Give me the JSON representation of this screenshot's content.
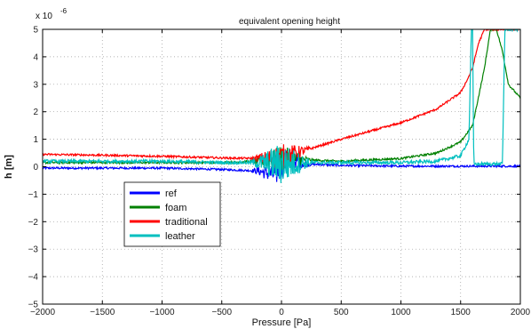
{
  "chart_data": {
    "type": "line",
    "title": "equivalent opening height",
    "xlabel": "Pressure [Pa]",
    "ylabel": "h [m]",
    "y_exponent": "x 10",
    "y_exponent_power": "-6",
    "xlim": [
      -2000,
      2000
    ],
    "ylim": [
      -5,
      5
    ],
    "x_ticks": [
      -2000,
      -1500,
      -1000,
      -500,
      0,
      500,
      1000,
      1500,
      2000
    ],
    "y_ticks": [
      -5,
      -4,
      -3,
      -2,
      -1,
      0,
      1,
      2,
      3,
      4,
      5
    ],
    "grid": true,
    "legend_position": "lower-left",
    "series": [
      {
        "name": "ref",
        "color": "#0000ff",
        "x": [
          -2000,
          -1500,
          -1000,
          -500,
          -200,
          -50,
          0,
          50,
          200,
          500,
          1000,
          1500,
          1600,
          1800,
          2000
        ],
        "y": [
          -0.05,
          -0.05,
          -0.05,
          -0.1,
          -0.15,
          -0.3,
          0,
          0.3,
          0.1,
          0.05,
          0.02,
          0.02,
          0.02,
          0.02,
          0.02
        ]
      },
      {
        "name": "foam",
        "color": "#008000",
        "x": [
          -2000,
          -1500,
          -1000,
          -500,
          -200,
          0,
          200,
          500,
          1000,
          1300,
          1500,
          1600,
          1700,
          1750,
          1800,
          1850,
          1900,
          2000
        ],
        "y": [
          0.15,
          0.15,
          0.15,
          0.15,
          0.2,
          0.3,
          0.25,
          0.2,
          0.3,
          0.5,
          0.9,
          1.5,
          3.6,
          5.0,
          5.0,
          4.2,
          3.0,
          2.5
        ]
      },
      {
        "name": "traditional",
        "color": "#ff0000",
        "x": [
          -2000,
          -1500,
          -1000,
          -500,
          -200,
          0,
          200,
          500,
          1000,
          1300,
          1500,
          1560,
          1600,
          1650,
          1700
        ],
        "y": [
          0.45,
          0.42,
          0.38,
          0.32,
          0.3,
          0.35,
          0.6,
          1.0,
          1.6,
          2.1,
          2.7,
          3.2,
          3.6,
          4.5,
          5.0
        ]
      },
      {
        "name": "leather",
        "color": "#00bfbf",
        "x": [
          -2000,
          -1500,
          -1000,
          -500,
          -200,
          0,
          200,
          500,
          1000,
          1300,
          1500,
          1570,
          1590,
          1600,
          1610,
          1700,
          1850,
          1870,
          1890,
          2000
        ],
        "y": [
          0.2,
          0.2,
          0.2,
          0.15,
          0.15,
          0.1,
          0.15,
          0.15,
          0.15,
          0.2,
          0.4,
          1.0,
          5.0,
          5.0,
          0.1,
          0.1,
          0.1,
          5.0,
          5.0,
          5.0
        ]
      }
    ]
  }
}
